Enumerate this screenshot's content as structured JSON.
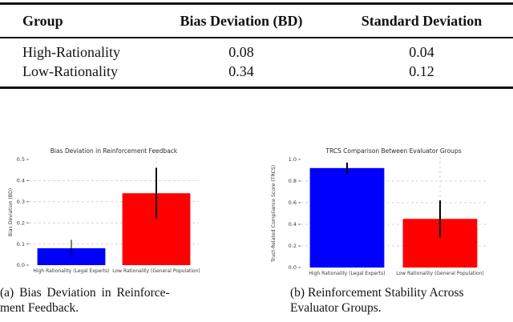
{
  "table": {
    "headers": [
      "Group",
      "Bias Deviation (BD)",
      "Standard Deviation"
    ],
    "rows": [
      {
        "group": "High-Rationality",
        "bd": "0.08",
        "sd": "0.04"
      },
      {
        "group": "Low-Rationality",
        "bd": "0.34",
        "sd": "0.12"
      }
    ]
  },
  "chart_data": [
    {
      "type": "bar",
      "title": "Bias Deviation in Reinforcement Feedback",
      "ylabel": "Bias Deviation (BD)",
      "xlabel": "",
      "categories": [
        "High Rationality (Legal Experts)",
        "Low Rationality (General Population)"
      ],
      "values": [
        0.08,
        0.34
      ],
      "errors": [
        0.04,
        0.12
      ],
      "bar_colors": [
        "#0000ff",
        "#ff0000"
      ],
      "ylim": [
        0,
        0.5
      ],
      "yticks": [
        0.0,
        0.1,
        0.2,
        0.3,
        0.4,
        0.5
      ],
      "grid": true,
      "grid_values": [
        0.1,
        0.2,
        0.3,
        0.4
      ],
      "vline_category_index": 1,
      "error_bar_widths": [
        1,
        2
      ],
      "legend": "none"
    },
    {
      "type": "bar",
      "title": "TRCS Comparison Between Evaluator Groups",
      "ylabel": "Trust-Related Compliance Score (TRCS)",
      "xlabel": "",
      "categories": [
        "High Rationality (Legal Experts)",
        "Low Rationality (General Population)"
      ],
      "values": [
        0.92,
        0.45
      ],
      "errors": [
        0.05,
        0.17
      ],
      "bar_colors": [
        "#0000ff",
        "#ff0000"
      ],
      "ylim": [
        0,
        1.0
      ],
      "yticks": [
        0.0,
        0.2,
        0.4,
        0.6,
        0.8,
        1.0
      ],
      "grid": true,
      "grid_values": [
        0.2,
        0.4,
        0.6,
        0.8
      ],
      "vline_category_index": 1,
      "error_bar_widths": [
        2,
        2
      ],
      "legend": "none"
    }
  ],
  "captions": {
    "a": {
      "line1": "(a) Bias Deviation in Reinforce-",
      "line2": "ment Feedback."
    },
    "b": {
      "line1": "(b) Reinforcement Stability Across",
      "line2": "Evaluator Groups."
    }
  },
  "colors": {
    "bar_blue": "#0000ff",
    "bar_red": "#ff0000",
    "error_bar": "#000000",
    "gridline": "#c9c9c9",
    "chart_text": "#3a3a3a",
    "rule": "#111111"
  }
}
